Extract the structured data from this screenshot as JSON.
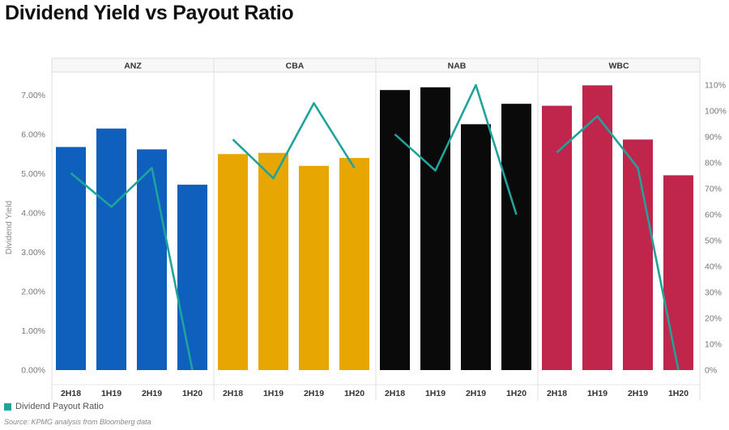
{
  "title": "Dividend Yield vs Payout Ratio",
  "legend_label": "Dividend Payout Ratio",
  "source": "Source: KPMG analysis from Bloomberg data",
  "colors": {
    "line": "#1fa39b",
    "ANZ": "#0f60bd",
    "CBA": "#e8a602",
    "NAB": "#0a0a0a",
    "WBC": "#c0264b"
  },
  "chart_data": {
    "type": "bar",
    "ylabel": "Dividend Yield",
    "y_ticks": [
      "0.00%",
      "1.00%",
      "2.00%",
      "3.00%",
      "4.00%",
      "5.00%",
      "6.00%",
      "7.00%"
    ],
    "ylim": [
      0,
      7.5
    ],
    "y2_ticks": [
      "0%",
      "10%",
      "20%",
      "30%",
      "40%",
      "50%",
      "60%",
      "70%",
      "80%",
      "90%",
      "100%",
      "110%"
    ],
    "y2lim": [
      0,
      114
    ],
    "categories": [
      "2H18",
      "1H19",
      "2H19",
      "1H20"
    ],
    "panels": [
      {
        "name": "ANZ",
        "dividend_yield": [
          5.68,
          6.15,
          5.62,
          4.72
        ],
        "payout_ratio": [
          76,
          63,
          78,
          0
        ]
      },
      {
        "name": "CBA",
        "dividend_yield": [
          5.5,
          5.53,
          5.2,
          5.4
        ],
        "payout_ratio": [
          89,
          74,
          103,
          78
        ]
      },
      {
        "name": "NAB",
        "dividend_yield": [
          7.13,
          7.2,
          6.26,
          6.78
        ],
        "payout_ratio": [
          91,
          77,
          110,
          60
        ]
      },
      {
        "name": "WBC",
        "dividend_yield": [
          6.73,
          7.25,
          5.87,
          4.96
        ],
        "payout_ratio": [
          84,
          98,
          78,
          0
        ]
      }
    ],
    "series": [
      {
        "name": "Dividend Payout Ratio",
        "type": "line",
        "axis": "right"
      }
    ],
    "grid": false,
    "legend_position": "bottom-left"
  }
}
